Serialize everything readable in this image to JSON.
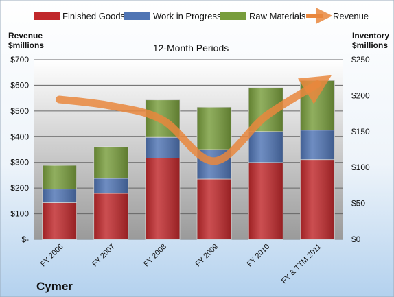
{
  "company": "Cymer",
  "chart_data": {
    "type": "bar",
    "stacked": true,
    "title": "12-Month Periods",
    "categories": [
      "FY 2006",
      "FY 2007",
      "FY 2008",
      "FY 2009",
      "FY 2010",
      "FY & TTM 2011"
    ],
    "left_axis": {
      "label_line1": "Revenue",
      "label_line2": "$millions",
      "ylim": [
        0,
        700
      ],
      "ticks": [
        0,
        100,
        200,
        300,
        400,
        500,
        600,
        700
      ],
      "tick_labels": [
        "$-",
        "$100",
        "$200",
        "$300",
        "$400",
        "$500",
        "$600",
        "$700"
      ]
    },
    "right_axis": {
      "label_line1": "Inventory",
      "label_line2": "$millions",
      "ylim": [
        0,
        250
      ],
      "ticks": [
        0,
        50,
        100,
        150,
        200,
        250
      ],
      "tick_labels": [
        "$0",
        "$50",
        "$100",
        "$150",
        "$200",
        "$250"
      ]
    },
    "series": [
      {
        "name": "Finished Goods",
        "axis": "right",
        "kind": "bar",
        "color": "#c0282b",
        "values": [
          51,
          64,
          113,
          84,
          107,
          111
        ]
      },
      {
        "name": "Work in Progress",
        "axis": "right",
        "kind": "bar",
        "color": "#4f74b4",
        "values": [
          19,
          21,
          29,
          41,
          43,
          41
        ]
      },
      {
        "name": "Raw Materials",
        "axis": "right",
        "kind": "bar",
        "color": "#789d3c",
        "values": [
          33,
          44,
          52,
          59,
          61,
          69
        ]
      },
      {
        "name": "Revenue",
        "axis": "left",
        "kind": "line",
        "color": "#e9873d",
        "values": [
          545,
          520,
          465,
          305,
          480,
          605
        ]
      }
    ],
    "legend_position": "top",
    "grid": true
  }
}
